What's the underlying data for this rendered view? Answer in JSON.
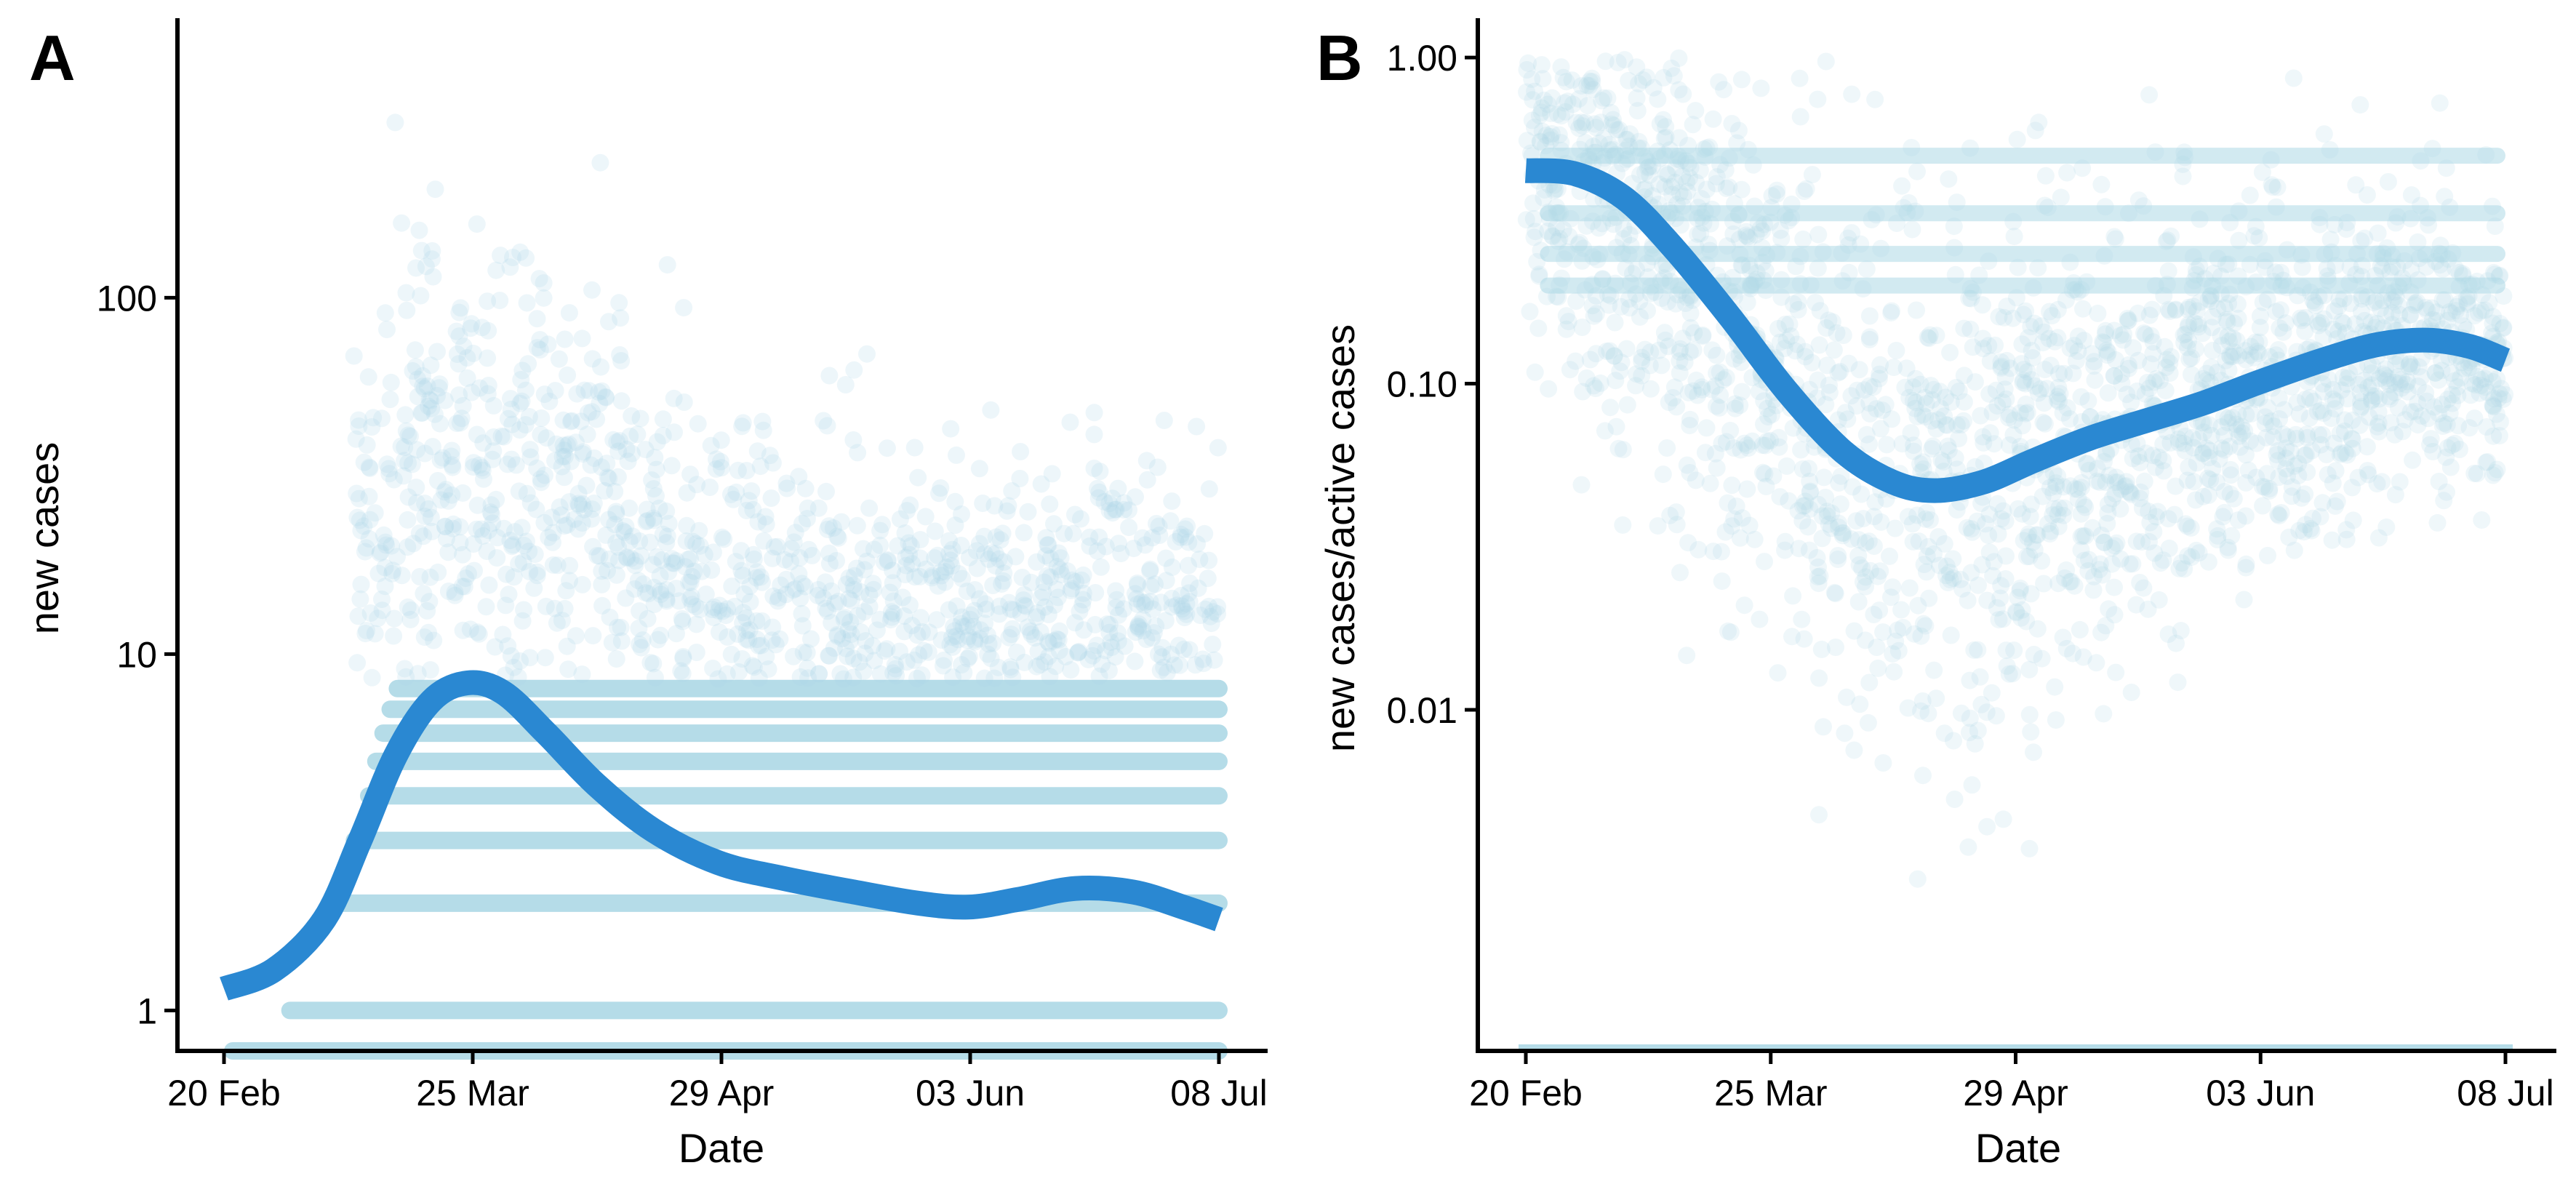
{
  "colors": {
    "points": "#add8e6",
    "trend": "#2a88d2",
    "axis": "#000000"
  },
  "chart_data": [
    {
      "panel": "A",
      "type": "scatter",
      "xlabel": "Date",
      "ylabel": "new cases",
      "y_scale": "log",
      "ylim": [
        0.77,
        600
      ],
      "x_ticks": [
        "20 Feb",
        "25 Mar",
        "29 Apr",
        "03 Jun",
        "08 Jul"
      ],
      "y_ticks": [
        {
          "value": 1,
          "label": "1"
        },
        {
          "value": 10,
          "label": "10"
        },
        {
          "value": 100,
          "label": "100"
        }
      ],
      "grid": false,
      "legend": "none",
      "point_bands": [
        {
          "start": "2020-02-20",
          "end": "2020-07-08",
          "y": 0.77
        },
        {
          "start": "2020-02-28",
          "end": "2020-07-08",
          "y": 1
        },
        {
          "start": "2020-03-05",
          "end": "2020-07-08",
          "y": 2
        },
        {
          "start": "2020-03-08",
          "end": "2020-07-08",
          "y": 3
        },
        {
          "start": "2020-03-10",
          "end": "2020-07-08",
          "y": 4
        },
        {
          "start": "2020-03-11",
          "end": "2020-07-08",
          "y": 5
        },
        {
          "start": "2020-03-12",
          "end": "2020-07-08",
          "y": 6
        },
        {
          "start": "2020-03-13",
          "end": "2020-07-08",
          "y": 7
        },
        {
          "start": "2020-03-14",
          "end": "2020-07-08",
          "y": 8
        }
      ],
      "trend_line": [
        {
          "x": "2020-02-20",
          "y": 1.15
        },
        {
          "x": "2020-02-27",
          "y": 1.3
        },
        {
          "x": "2020-03-05",
          "y": 1.8
        },
        {
          "x": "2020-03-10",
          "y": 3.0
        },
        {
          "x": "2020-03-15",
          "y": 5.2
        },
        {
          "x": "2020-03-20",
          "y": 7.4
        },
        {
          "x": "2020-03-25",
          "y": 8.3
        },
        {
          "x": "2020-03-30",
          "y": 7.8
        },
        {
          "x": "2020-04-05",
          "y": 6.0
        },
        {
          "x": "2020-04-12",
          "y": 4.3
        },
        {
          "x": "2020-04-20",
          "y": 3.2
        },
        {
          "x": "2020-04-29",
          "y": 2.6
        },
        {
          "x": "2020-05-08",
          "y": 2.35
        },
        {
          "x": "2020-05-18",
          "y": 2.15
        },
        {
          "x": "2020-05-27",
          "y": 2.0
        },
        {
          "x": "2020-06-03",
          "y": 1.95
        },
        {
          "x": "2020-06-10",
          "y": 2.05
        },
        {
          "x": "2020-06-18",
          "y": 2.2
        },
        {
          "x": "2020-06-26",
          "y": 2.15
        },
        {
          "x": "2020-07-03",
          "y": 1.95
        },
        {
          "x": "2020-07-08",
          "y": 1.8
        }
      ]
    },
    {
      "panel": "B",
      "type": "scatter",
      "xlabel": "Date",
      "ylabel": "new cases/active cases",
      "y_scale": "log",
      "ylim": [
        0.0009,
        1.3
      ],
      "x_ticks": [
        "20 Feb",
        "25 Mar",
        "29 Apr",
        "03 Jun",
        "08 Jul"
      ],
      "y_ticks": [
        {
          "value": 0.01,
          "label": "0.01"
        },
        {
          "value": 0.1,
          "label": "0.10"
        },
        {
          "value": 1,
          "label": "1.00"
        }
      ],
      "grid": false,
      "legend": "none",
      "trend_line": [
        {
          "x": "2020-02-20",
          "y": 0.45
        },
        {
          "x": "2020-02-27",
          "y": 0.44
        },
        {
          "x": "2020-03-05",
          "y": 0.37
        },
        {
          "x": "2020-03-12",
          "y": 0.26
        },
        {
          "x": "2020-03-20",
          "y": 0.16
        },
        {
          "x": "2020-03-28",
          "y": 0.095
        },
        {
          "x": "2020-04-05",
          "y": 0.062
        },
        {
          "x": "2020-04-12",
          "y": 0.05
        },
        {
          "x": "2020-04-18",
          "y": 0.047
        },
        {
          "x": "2020-04-25",
          "y": 0.05
        },
        {
          "x": "2020-05-02",
          "y": 0.058
        },
        {
          "x": "2020-05-10",
          "y": 0.068
        },
        {
          "x": "2020-05-18",
          "y": 0.077
        },
        {
          "x": "2020-05-26",
          "y": 0.087
        },
        {
          "x": "2020-06-03",
          "y": 0.101
        },
        {
          "x": "2020-06-12",
          "y": 0.118
        },
        {
          "x": "2020-06-20",
          "y": 0.132
        },
        {
          "x": "2020-06-27",
          "y": 0.136
        },
        {
          "x": "2020-07-03",
          "y": 0.13
        },
        {
          "x": "2020-07-08",
          "y": 0.118
        }
      ]
    }
  ]
}
